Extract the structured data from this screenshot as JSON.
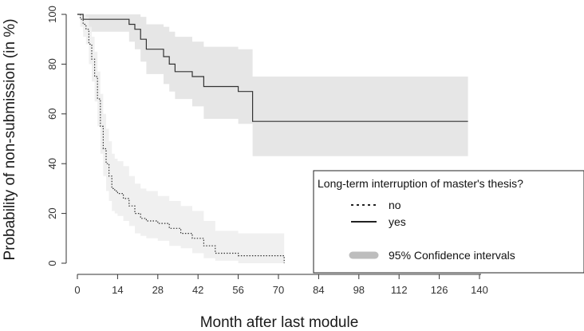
{
  "chart_data": {
    "type": "line",
    "title": "",
    "xlabel": "Month after last module",
    "ylabel": "Probability of non-submission (in %)",
    "xlim": [
      0,
      140
    ],
    "ylim": [
      0,
      100
    ],
    "xticks": [
      0,
      14,
      28,
      42,
      56,
      70,
      84,
      98,
      112,
      126,
      140
    ],
    "yticks": [
      0,
      20,
      40,
      60,
      80,
      100
    ],
    "grid": false,
    "legend": {
      "title": "Long-term interruption of master's thesis?",
      "position": "bottom-right",
      "entries": [
        "no",
        "yes"
      ],
      "ci_label": "95% Confidence intervals"
    },
    "series": [
      {
        "name": "yes",
        "line_style": "solid",
        "color": "#333333",
        "ci_color": "#e6e6e6",
        "x": [
          0,
          2,
          3,
          18,
          20,
          22,
          24,
          27,
          30,
          32,
          34,
          36,
          40,
          44,
          56,
          61,
          136
        ],
        "y": [
          100,
          98,
          98,
          96,
          94,
          90,
          86,
          86,
          83,
          80,
          77,
          77,
          75,
          71,
          69,
          57,
          57
        ],
        "ci_upper": [
          100,
          100,
          100,
          100,
          100,
          99,
          96,
          96,
          95,
          93,
          91,
          91,
          89,
          87,
          86,
          75,
          75
        ],
        "ci_lower": [
          100,
          93,
          93,
          89,
          86,
          81,
          76,
          76,
          72,
          69,
          66,
          66,
          63,
          58,
          56,
          43,
          43
        ]
      },
      {
        "name": "no",
        "line_style": "dotted",
        "color": "#333333",
        "ci_color": "#f0f0f0",
        "x": [
          0,
          1,
          2,
          3,
          4,
          5,
          6,
          7,
          8,
          9,
          10,
          11,
          12,
          13,
          14,
          16,
          18,
          20,
          22,
          24,
          28,
          32,
          36,
          40,
          44,
          48,
          56,
          72
        ],
        "y": [
          100,
          98,
          96,
          94,
          88,
          82,
          75,
          66,
          55,
          46,
          40,
          35,
          30,
          29,
          28,
          26,
          23,
          20,
          18,
          17,
          16,
          14,
          12,
          10,
          7,
          4,
          3,
          0
        ],
        "ci_upper": [
          100,
          100,
          100,
          99,
          95,
          91,
          85,
          77,
          68,
          60,
          54,
          49,
          44,
          42,
          41,
          39,
          35,
          32,
          30,
          29,
          27,
          25,
          23,
          21,
          17,
          13,
          12,
          12
        ],
        "ci_lower": [
          100,
          95,
          91,
          88,
          80,
          73,
          65,
          55,
          44,
          35,
          29,
          25,
          21,
          20,
          19,
          17,
          15,
          12,
          11,
          10,
          9,
          7,
          6,
          4,
          2,
          1,
          0,
          0
        ]
      }
    ]
  }
}
